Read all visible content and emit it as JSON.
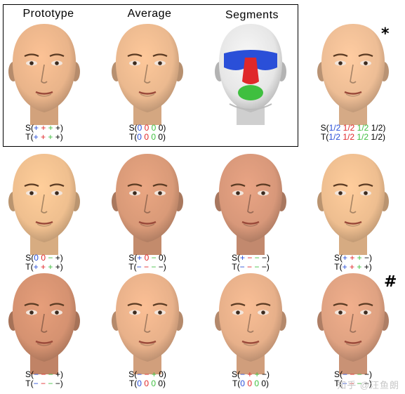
{
  "figure": {
    "headers": [
      "Prototype",
      "Average",
      "Segments"
    ],
    "marks": {
      "star": "*",
      "hash": "#"
    },
    "watermark": "知乎 @汪鱼朗",
    "colors": {
      "blue": "#2a4fd8",
      "red": "#e0282a",
      "green": "#3fbf3f",
      "black": "#000000"
    },
    "cells": [
      {
        "id": "prototype",
        "skin": "#e9b48a",
        "S": [
          [
            "S(",
            "k"
          ],
          [
            "+",
            "b"
          ],
          [
            " ",
            "k"
          ],
          [
            "+",
            "r"
          ],
          [
            " ",
            "k"
          ],
          [
            "+",
            "g"
          ],
          [
            " +)",
            "k"
          ]
        ],
        "T": [
          [
            "T(",
            "k"
          ],
          [
            "+",
            "b"
          ],
          [
            " ",
            "k"
          ],
          [
            "+",
            "r"
          ],
          [
            " ",
            "k"
          ],
          [
            "+",
            "g"
          ],
          [
            " +)",
            "k"
          ]
        ]
      },
      {
        "id": "average",
        "skin": "#ebb98f",
        "S": [
          [
            "S(",
            "k"
          ],
          [
            "0",
            "b"
          ],
          [
            " ",
            "k"
          ],
          [
            "0",
            "r"
          ],
          [
            " ",
            "k"
          ],
          [
            "0",
            "g"
          ],
          [
            " 0)",
            "k"
          ]
        ],
        "T": [
          [
            "T(",
            "k"
          ],
          [
            "0",
            "b"
          ],
          [
            " ",
            "k"
          ],
          [
            "0",
            "r"
          ],
          [
            " ",
            "k"
          ],
          [
            "0",
            "g"
          ],
          [
            " 0)",
            "k"
          ]
        ]
      },
      {
        "id": "segments",
        "skin": "#e6e6e6",
        "segmented": true,
        "S": [],
        "T": []
      },
      {
        "id": "half",
        "skin": "#edbd95",
        "S": [
          [
            "S(",
            "k"
          ],
          [
            "1/2",
            "b"
          ],
          [
            " ",
            "k"
          ],
          [
            "1/2",
            "r"
          ],
          [
            " ",
            "k"
          ],
          [
            "1/2",
            "g"
          ],
          [
            " 1/2)",
            "k"
          ]
        ],
        "T": [
          [
            "T(",
            "k"
          ],
          [
            "1/2",
            "b"
          ],
          [
            " ",
            "k"
          ],
          [
            "1/2",
            "r"
          ],
          [
            " ",
            "k"
          ],
          [
            "1/2",
            "g"
          ],
          [
            " 1/2)",
            "k"
          ]
        ]
      },
      {
        "id": "r2c1",
        "skin": "#efbf8f",
        "S": [
          [
            "S(",
            "k"
          ],
          [
            "0",
            "b"
          ],
          [
            " ",
            "k"
          ],
          [
            "0",
            "r"
          ],
          [
            " ",
            "k"
          ],
          [
            "−",
            "g"
          ],
          [
            " +)",
            "k"
          ]
        ],
        "T": [
          [
            "T(",
            "k"
          ],
          [
            "+",
            "b"
          ],
          [
            " ",
            "k"
          ],
          [
            "+",
            "r"
          ],
          [
            " ",
            "k"
          ],
          [
            "+",
            "g"
          ],
          [
            " +)",
            "k"
          ]
        ]
      },
      {
        "id": "r2c2",
        "skin": "#d99a78",
        "S": [
          [
            "S(",
            "k"
          ],
          [
            "+",
            "b"
          ],
          [
            " ",
            "k"
          ],
          [
            "0",
            "r"
          ],
          [
            " ",
            "k"
          ],
          [
            "−",
            "g"
          ],
          [
            " 0)",
            "k"
          ]
        ],
        "T": [
          [
            "T(",
            "k"
          ],
          [
            "−",
            "b"
          ],
          [
            " ",
            "k"
          ],
          [
            "−",
            "r"
          ],
          [
            " ",
            "k"
          ],
          [
            "−",
            "g"
          ],
          [
            " −)",
            "k"
          ]
        ]
      },
      {
        "id": "r2c3",
        "skin": "#d8987a",
        "S": [
          [
            "S(",
            "k"
          ],
          [
            "+",
            "b"
          ],
          [
            " ",
            "k"
          ],
          [
            "−",
            "r"
          ],
          [
            " ",
            "k"
          ],
          [
            "−",
            "g"
          ],
          [
            " −)",
            "k"
          ]
        ],
        "T": [
          [
            "T(",
            "k"
          ],
          [
            "−",
            "b"
          ],
          [
            " ",
            "k"
          ],
          [
            "−",
            "r"
          ],
          [
            " ",
            "k"
          ],
          [
            "−",
            "g"
          ],
          [
            " −)",
            "k"
          ]
        ]
      },
      {
        "id": "r2c4",
        "skin": "#eebe90",
        "S": [
          [
            "S(",
            "k"
          ],
          [
            "+",
            "b"
          ],
          [
            " ",
            "k"
          ],
          [
            "+",
            "r"
          ],
          [
            " ",
            "k"
          ],
          [
            "+",
            "g"
          ],
          [
            " −)",
            "k"
          ]
        ],
        "T": [
          [
            "T(",
            "k"
          ],
          [
            "+",
            "b"
          ],
          [
            " ",
            "k"
          ],
          [
            "+",
            "r"
          ],
          [
            " ",
            "k"
          ],
          [
            "+",
            "g"
          ],
          [
            " +)",
            "k"
          ]
        ]
      },
      {
        "id": "r3c1",
        "skin": "#d59271",
        "S": [
          [
            "S(",
            "k"
          ],
          [
            "−",
            "b"
          ],
          [
            " ",
            "k"
          ],
          [
            "−",
            "r"
          ],
          [
            " ",
            "k"
          ],
          [
            "−",
            "g"
          ],
          [
            " +)",
            "k"
          ]
        ],
        "T": [
          [
            "T(",
            "k"
          ],
          [
            "−",
            "b"
          ],
          [
            " ",
            "k"
          ],
          [
            "−",
            "r"
          ],
          [
            " ",
            "k"
          ],
          [
            "−",
            "g"
          ],
          [
            " −)",
            "k"
          ]
        ]
      },
      {
        "id": "r3c2",
        "skin": "#e8b18a",
        "S": [
          [
            "S(",
            "k"
          ],
          [
            "−",
            "b"
          ],
          [
            " ",
            "k"
          ],
          [
            "−",
            "r"
          ],
          [
            " ",
            "k"
          ],
          [
            "+",
            "g"
          ],
          [
            " 0)",
            "k"
          ]
        ],
        "T": [
          [
            "T(",
            "k"
          ],
          [
            "0",
            "b"
          ],
          [
            " ",
            "k"
          ],
          [
            "0",
            "r"
          ],
          [
            " ",
            "k"
          ],
          [
            "0",
            "g"
          ],
          [
            " 0)",
            "k"
          ]
        ]
      },
      {
        "id": "r3c3",
        "skin": "#e7b08a",
        "S": [
          [
            "S(",
            "k"
          ],
          [
            "−",
            "b"
          ],
          [
            " ",
            "k"
          ],
          [
            "+",
            "r"
          ],
          [
            " ",
            "k"
          ],
          [
            "+",
            "g"
          ],
          [
            " −)",
            "k"
          ]
        ],
        "T": [
          [
            "T(",
            "k"
          ],
          [
            "0",
            "b"
          ],
          [
            " ",
            "k"
          ],
          [
            "0",
            "r"
          ],
          [
            " ",
            "k"
          ],
          [
            "0",
            "g"
          ],
          [
            " 0)",
            "k"
          ]
        ]
      },
      {
        "id": "r3c4",
        "skin": "#dfa282",
        "S": [
          [
            "S(",
            "k"
          ],
          [
            "−",
            "b"
          ],
          [
            " ",
            "k"
          ],
          [
            "−",
            "r"
          ],
          [
            " ",
            "k"
          ],
          [
            "−",
            "g"
          ],
          [
            " −)",
            "k"
          ]
        ],
        "T": [
          [
            "T(",
            "k"
          ],
          [
            "−",
            "b"
          ],
          [
            " ",
            "k"
          ],
          [
            "−",
            "r"
          ],
          [
            " ",
            "k"
          ],
          [
            "−",
            "g"
          ],
          [
            " −)",
            "k"
          ]
        ]
      }
    ]
  }
}
